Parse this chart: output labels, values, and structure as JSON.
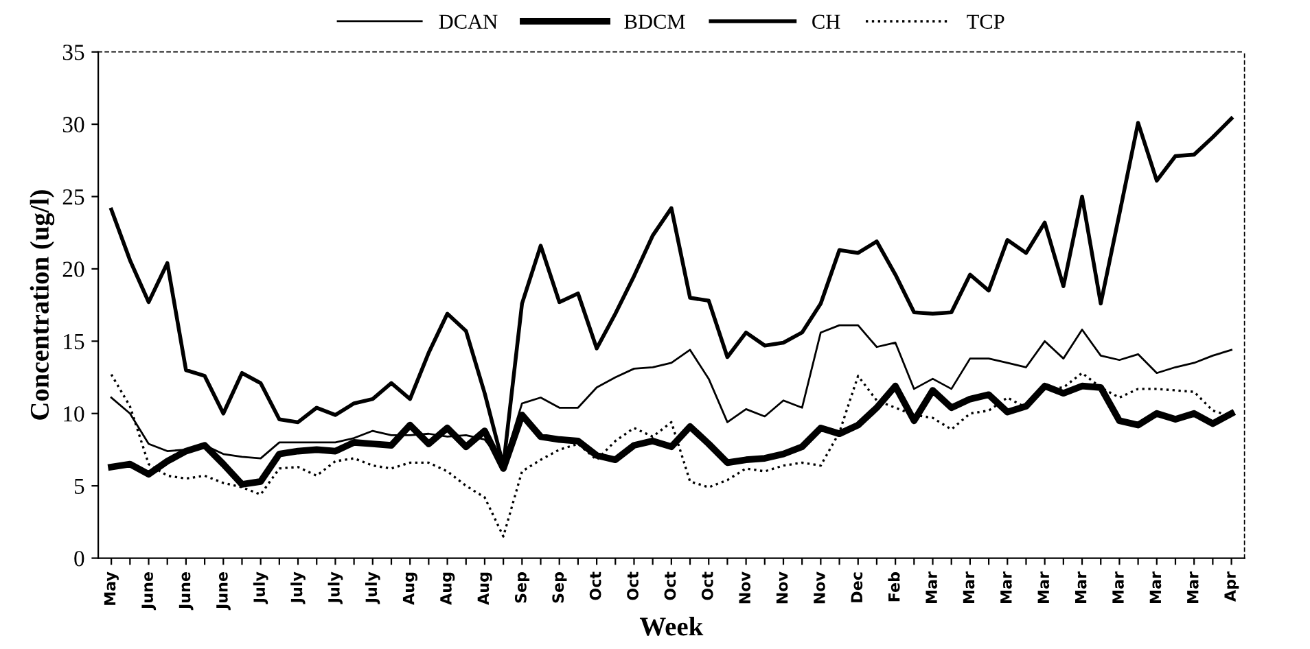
{
  "chart_data": {
    "type": "line",
    "xlabel": "Week",
    "ylabel": "Concentration (ug/l)",
    "categories": [
      "May",
      null,
      "June",
      null,
      "June",
      null,
      "June",
      null,
      "July",
      null,
      "July",
      null,
      "July",
      null,
      "July",
      null,
      "Aug",
      null,
      "Aug",
      null,
      "Aug",
      null,
      "Sep",
      null,
      "Sep",
      null,
      "Oct",
      null,
      "Oct",
      null,
      "Oct",
      null,
      "Oct",
      null,
      "Nov",
      null,
      "Nov",
      null,
      "Nov",
      null,
      "Dec",
      null,
      "Feb",
      null,
      "Mar",
      null,
      "Mar",
      null,
      "Mar",
      null,
      "Mar",
      null,
      "Mar",
      null,
      "Mar",
      null,
      "Mar",
      null,
      "Mar",
      null,
      "Apr"
    ],
    "series": [
      {
        "name": "DCAN",
        "color": "#000000",
        "line_style": "solid",
        "values": [
          11.1,
          10.0,
          7.9,
          7.4,
          7.5,
          7.8,
          7.2,
          7.0,
          6.9,
          8.0,
          8.0,
          8.0,
          8.0,
          8.3,
          8.8,
          8.5,
          8.5,
          8.6,
          8.4,
          8.5,
          8.2,
          6.5,
          10.7,
          11.1,
          10.4,
          10.4,
          11.8,
          12.5,
          13.1,
          13.2,
          13.5,
          14.4,
          12.4,
          9.4,
          10.3,
          9.8,
          10.9,
          10.4,
          15.6,
          16.1,
          16.1,
          14.6,
          14.9,
          11.7,
          12.4,
          11.7,
          13.8,
          13.8,
          13.5,
          13.2,
          15.0,
          13.8,
          15.8,
          14.0,
          13.7,
          14.1,
          12.8,
          13.2,
          13.5,
          14.0,
          14.4
        ]
      },
      {
        "name": "BDCM",
        "color": "#000000",
        "line_style": "solid",
        "values": [
          6.3,
          6.5,
          5.8,
          6.7,
          7.4,
          7.8,
          6.5,
          5.1,
          5.3,
          7.2,
          7.4,
          7.5,
          7.4,
          8.0,
          7.9,
          7.8,
          9.2,
          7.9,
          9.0,
          7.7,
          8.8,
          6.2,
          9.9,
          8.4,
          8.2,
          8.1,
          7.1,
          6.8,
          7.8,
          8.1,
          7.7,
          9.1,
          7.9,
          6.6,
          6.8,
          6.9,
          7.2,
          7.7,
          9.0,
          8.6,
          9.2,
          10.4,
          11.9,
          9.5,
          11.6,
          10.4,
          11.0,
          11.3,
          10.1,
          10.5,
          11.9,
          11.4,
          11.9,
          11.8,
          9.5,
          9.2,
          10.0,
          9.6,
          10.0,
          9.3,
          10.0
        ]
      },
      {
        "name": "CH",
        "color": "#000000",
        "line_style": "solid",
        "values": [
          24.1,
          20.6,
          17.7,
          20.4,
          13.0,
          12.6,
          10.0,
          12.8,
          12.1,
          9.6,
          9.4,
          10.4,
          9.9,
          10.7,
          11.0,
          12.1,
          11.0,
          14.2,
          16.9,
          15.7,
          11.4,
          6.4,
          17.6,
          21.6,
          17.7,
          18.3,
          14.5,
          16.9,
          19.5,
          22.3,
          24.2,
          18.0,
          17.8,
          13.9,
          15.6,
          14.7,
          14.9,
          15.6,
          17.6,
          21.3,
          21.1,
          21.9,
          19.6,
          17.0,
          16.9,
          17.0,
          19.6,
          18.5,
          22.0,
          21.1,
          23.2,
          18.8,
          25.0,
          17.6,
          23.8,
          30.1,
          26.1,
          27.8,
          27.9,
          29.1,
          30.4
        ]
      },
      {
        "name": "TCP",
        "color": "#000000",
        "line_style": "dotted",
        "values": [
          12.7,
          10.5,
          6.5,
          5.7,
          5.5,
          5.7,
          5.2,
          4.9,
          4.4,
          6.2,
          6.3,
          5.7,
          6.7,
          6.9,
          6.4,
          6.2,
          6.6,
          6.6,
          6.0,
          5.0,
          4.2,
          1.5,
          6.0,
          6.8,
          7.5,
          7.9,
          6.8,
          8.1,
          9.0,
          8.4,
          9.4,
          5.3,
          4.9,
          5.4,
          6.2,
          6.0,
          6.4,
          6.6,
          6.4,
          8.7,
          12.6,
          10.9,
          10.4,
          9.9,
          9.7,
          8.9,
          10.0,
          10.2,
          11.1,
          10.4,
          11.7,
          11.8,
          12.8,
          11.8,
          11.1,
          11.7,
          11.7,
          11.6,
          11.5,
          10.2,
          9.8
        ]
      }
    ],
    "ylim": [
      0,
      35
    ],
    "yticks": [
      0,
      5,
      10,
      15,
      20,
      25,
      30,
      35
    ],
    "grid": false,
    "legend": "top",
    "marker": "none"
  }
}
